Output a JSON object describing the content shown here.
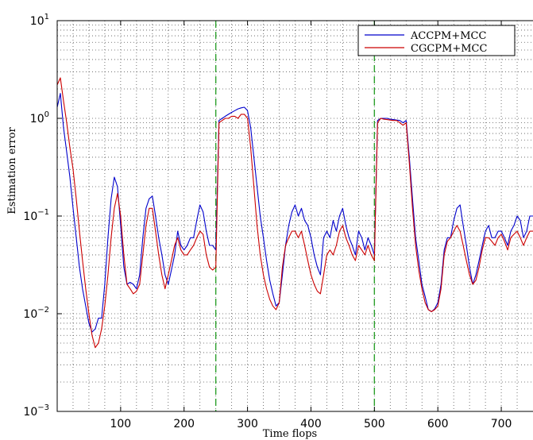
{
  "chart_data": {
    "type": "line",
    "title": "",
    "xlabel": "Time flops",
    "ylabel": "Estimation error",
    "xlim": [
      0,
      750
    ],
    "ylim": [
      0.001,
      10
    ],
    "yscale": "log",
    "grid": true,
    "legend_placement": "top-right",
    "x_ticks": [
      100,
      200,
      300,
      400,
      500,
      600,
      700
    ],
    "x_tick_labels": [
      "100",
      "200",
      "300",
      "400",
      "500",
      "600",
      "700"
    ],
    "y_tick_values": [
      0.001,
      0.01,
      0.1,
      1,
      10
    ],
    "y_tick_labels": [
      {
        "base": "10",
        "exp": "−3"
      },
      {
        "base": "10",
        "exp": "−2"
      },
      {
        "base": "10",
        "exp": "−1"
      },
      {
        "base": "10",
        "exp": "0"
      },
      {
        "base": "10",
        "exp": "1"
      }
    ],
    "vertical_markers": [
      {
        "x": 250,
        "color": "#2ca02c"
      },
      {
        "x": 500,
        "color": "#2ca02c"
      }
    ],
    "series": [
      {
        "name": "ACCPM+MCC",
        "color": "#0000cc",
        "x": [
          0,
          5,
          10,
          15,
          20,
          25,
          30,
          35,
          40,
          45,
          50,
          55,
          60,
          65,
          70,
          75,
          80,
          85,
          90,
          95,
          100,
          105,
          110,
          115,
          120,
          125,
          130,
          135,
          140,
          145,
          150,
          155,
          160,
          165,
          170,
          175,
          180,
          185,
          190,
          195,
          200,
          205,
          210,
          215,
          220,
          225,
          230,
          235,
          240,
          245,
          250,
          255,
          260,
          265,
          270,
          275,
          280,
          285,
          290,
          295,
          300,
          305,
          310,
          315,
          320,
          325,
          330,
          335,
          340,
          345,
          350,
          355,
          360,
          365,
          370,
          375,
          380,
          385,
          390,
          395,
          400,
          405,
          410,
          415,
          420,
          425,
          430,
          435,
          440,
          445,
          450,
          455,
          460,
          465,
          470,
          475,
          480,
          485,
          490,
          495,
          500,
          505,
          510,
          515,
          520,
          525,
          530,
          535,
          540,
          545,
          550,
          555,
          560,
          565,
          570,
          575,
          580,
          585,
          590,
          595,
          600,
          605,
          610,
          615,
          620,
          625,
          630,
          635,
          640,
          645,
          650,
          655,
          660,
          665,
          670,
          675,
          680,
          685,
          690,
          695,
          700,
          705,
          710,
          715,
          720,
          725,
          730,
          735,
          740,
          745,
          750
        ],
        "values": [
          1.3,
          1.8,
          0.8,
          0.45,
          0.25,
          0.12,
          0.06,
          0.03,
          0.018,
          0.012,
          0.008,
          0.0065,
          0.007,
          0.009,
          0.009,
          0.02,
          0.06,
          0.15,
          0.25,
          0.2,
          0.08,
          0.03,
          0.02,
          0.021,
          0.02,
          0.018,
          0.025,
          0.06,
          0.12,
          0.15,
          0.16,
          0.1,
          0.06,
          0.04,
          0.025,
          0.02,
          0.028,
          0.04,
          0.07,
          0.05,
          0.045,
          0.05,
          0.06,
          0.06,
          0.09,
          0.13,
          0.11,
          0.07,
          0.05,
          0.05,
          0.045,
          0.95,
          1.0,
          1.05,
          1.1,
          1.15,
          1.2,
          1.25,
          1.28,
          1.3,
          1.2,
          0.8,
          0.4,
          0.2,
          0.1,
          0.06,
          0.035,
          0.022,
          0.016,
          0.012,
          0.013,
          0.025,
          0.05,
          0.08,
          0.11,
          0.13,
          0.1,
          0.12,
          0.09,
          0.08,
          0.06,
          0.04,
          0.03,
          0.025,
          0.06,
          0.07,
          0.06,
          0.09,
          0.07,
          0.1,
          0.12,
          0.08,
          0.06,
          0.05,
          0.04,
          0.07,
          0.06,
          0.045,
          0.06,
          0.05,
          0.04,
          0.95,
          1.0,
          1.0,
          1.0,
          0.98,
          0.97,
          0.96,
          0.95,
          0.9,
          0.95,
          0.4,
          0.15,
          0.06,
          0.035,
          0.02,
          0.015,
          0.011,
          0.0105,
          0.0112,
          0.013,
          0.02,
          0.045,
          0.06,
          0.06,
          0.09,
          0.12,
          0.13,
          0.08,
          0.05,
          0.03,
          0.02,
          0.025,
          0.035,
          0.05,
          0.07,
          0.08,
          0.06,
          0.06,
          0.07,
          0.07,
          0.06,
          0.05,
          0.07,
          0.08,
          0.1,
          0.09,
          0.06,
          0.07,
          0.1,
          0.1
        ]
      },
      {
        "name": "CGCPM+MCC",
        "color": "#cc0000",
        "x": [
          0,
          5,
          10,
          15,
          20,
          25,
          30,
          35,
          40,
          45,
          50,
          55,
          60,
          65,
          70,
          75,
          80,
          85,
          90,
          95,
          100,
          105,
          110,
          115,
          120,
          125,
          130,
          135,
          140,
          145,
          150,
          155,
          160,
          165,
          170,
          175,
          180,
          185,
          190,
          195,
          200,
          205,
          210,
          215,
          220,
          225,
          230,
          235,
          240,
          245,
          250,
          255,
          260,
          265,
          270,
          275,
          280,
          285,
          290,
          295,
          300,
          305,
          310,
          315,
          320,
          325,
          330,
          335,
          340,
          345,
          350,
          355,
          360,
          365,
          370,
          375,
          380,
          385,
          390,
          395,
          400,
          405,
          410,
          415,
          420,
          425,
          430,
          435,
          440,
          445,
          450,
          455,
          460,
          465,
          470,
          475,
          480,
          485,
          490,
          495,
          500,
          505,
          510,
          515,
          520,
          525,
          530,
          535,
          540,
          545,
          550,
          555,
          560,
          565,
          570,
          575,
          580,
          585,
          590,
          595,
          600,
          605,
          610,
          615,
          620,
          625,
          630,
          635,
          640,
          645,
          650,
          655,
          660,
          665,
          670,
          675,
          680,
          685,
          690,
          695,
          700,
          705,
          710,
          715,
          720,
          725,
          730,
          735,
          740,
          745,
          750
        ],
        "values": [
          2.2,
          2.6,
          1.5,
          0.9,
          0.5,
          0.3,
          0.15,
          0.07,
          0.035,
          0.018,
          0.01,
          0.006,
          0.0045,
          0.005,
          0.007,
          0.012,
          0.025,
          0.06,
          0.12,
          0.17,
          0.1,
          0.04,
          0.02,
          0.018,
          0.016,
          0.017,
          0.02,
          0.04,
          0.08,
          0.12,
          0.12,
          0.07,
          0.04,
          0.025,
          0.018,
          0.025,
          0.035,
          0.05,
          0.06,
          0.045,
          0.04,
          0.04,
          0.045,
          0.05,
          0.06,
          0.07,
          0.065,
          0.04,
          0.03,
          0.028,
          0.03,
          0.9,
          0.95,
          1.0,
          1.0,
          1.05,
          1.05,
          1.0,
          1.1,
          1.1,
          1.0,
          0.5,
          0.2,
          0.08,
          0.04,
          0.025,
          0.018,
          0.014,
          0.012,
          0.011,
          0.013,
          0.03,
          0.05,
          0.06,
          0.07,
          0.07,
          0.06,
          0.07,
          0.05,
          0.035,
          0.025,
          0.02,
          0.017,
          0.016,
          0.025,
          0.04,
          0.045,
          0.04,
          0.05,
          0.07,
          0.08,
          0.06,
          0.05,
          0.04,
          0.035,
          0.05,
          0.045,
          0.04,
          0.05,
          0.04,
          0.035,
          0.9,
          1.0,
          0.98,
          0.97,
          0.96,
          0.95,
          0.95,
          0.9,
          0.85,
          0.9,
          0.35,
          0.12,
          0.05,
          0.028,
          0.018,
          0.013,
          0.011,
          0.0105,
          0.011,
          0.012,
          0.018,
          0.04,
          0.055,
          0.06,
          0.07,
          0.08,
          0.07,
          0.05,
          0.035,
          0.025,
          0.02,
          0.022,
          0.03,
          0.045,
          0.06,
          0.06,
          0.055,
          0.05,
          0.06,
          0.065,
          0.055,
          0.045,
          0.06,
          0.065,
          0.07,
          0.06,
          0.05,
          0.06,
          0.07,
          0.07
        ]
      }
    ]
  }
}
